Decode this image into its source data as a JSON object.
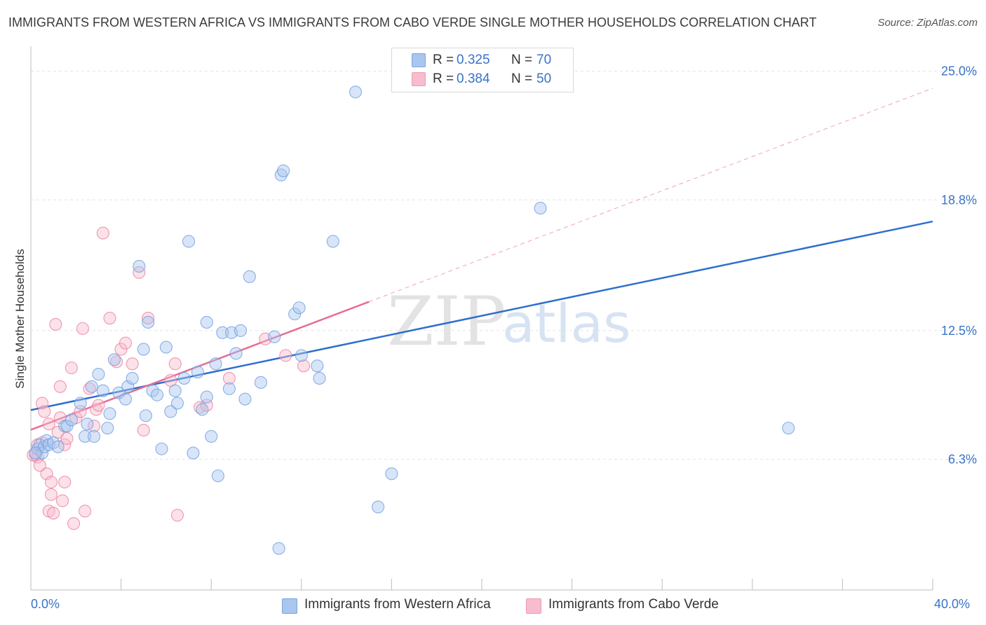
{
  "title": "IMMIGRANTS FROM WESTERN AFRICA VS IMMIGRANTS FROM CABO VERDE SINGLE MOTHER HOUSEHOLDS CORRELATION CHART",
  "source": "Source: ZipAtlas.com",
  "watermark": {
    "zip": "ZIP",
    "atlas": "atlas"
  },
  "legend": {
    "rows": [
      {
        "r_label": "R =",
        "r_value": "0.325",
        "n_label": "N =",
        "n_value": "70",
        "color": "#a9c6ef"
      },
      {
        "r_label": "R =",
        "r_value": "0.384",
        "n_label": "N =",
        "n_value": "50",
        "color": "#f7bccd"
      }
    ]
  },
  "bottom_legend": [
    {
      "label": "Immigrants from Western Africa",
      "color": "#a9c6ef"
    },
    {
      "label": "Immigrants from Cabo Verde",
      "color": "#f7bccd"
    }
  ],
  "chart_data": {
    "type": "scatter",
    "title": "IMMIGRANTS FROM WESTERN AFRICA VS IMMIGRANTS FROM CABO VERDE SINGLE MOTHER HOUSEHOLDS CORRELATION CHART",
    "xlabel": "",
    "ylabel": "Single Mother Households",
    "xlim": [
      0,
      40
    ],
    "ylim": [
      0,
      25.9
    ],
    "x_tick_labels": [
      "0.0%",
      "40.0%"
    ],
    "y_ticks": [
      6.3,
      12.5,
      18.8,
      25.0
    ],
    "y_tick_labels": [
      "6.3%",
      "12.5%",
      "18.8%",
      "25.0%"
    ],
    "grid": true,
    "legend_position": "top-center",
    "series": [
      {
        "name": "Immigrants from Western Africa",
        "color": "#6f9fe0",
        "fill": "#a9c6ef",
        "points": [
          [
            0.3,
            6.8
          ],
          [
            0.4,
            7.0
          ],
          [
            0.5,
            6.6
          ],
          [
            0.6,
            6.9
          ],
          [
            0.7,
            7.2
          ],
          [
            0.8,
            7.0
          ],
          [
            1.0,
            7.1
          ],
          [
            1.2,
            6.9
          ],
          [
            1.5,
            7.9
          ],
          [
            1.6,
            7.9
          ],
          [
            1.8,
            8.2
          ],
          [
            2.2,
            9.0
          ],
          [
            2.4,
            7.4
          ],
          [
            2.5,
            8.0
          ],
          [
            2.7,
            9.8
          ],
          [
            2.8,
            7.4
          ],
          [
            3.0,
            10.4
          ],
          [
            3.2,
            9.6
          ],
          [
            3.4,
            7.8
          ],
          [
            3.5,
            8.5
          ],
          [
            3.7,
            11.1
          ],
          [
            3.9,
            9.5
          ],
          [
            4.2,
            9.2
          ],
          [
            4.3,
            9.8
          ],
          [
            4.5,
            10.2
          ],
          [
            4.8,
            15.6
          ],
          [
            5.0,
            11.6
          ],
          [
            5.1,
            8.4
          ],
          [
            5.2,
            12.9
          ],
          [
            5.4,
            9.6
          ],
          [
            5.6,
            9.4
          ],
          [
            5.8,
            6.8
          ],
          [
            6.0,
            11.7
          ],
          [
            6.2,
            8.6
          ],
          [
            6.4,
            9.6
          ],
          [
            6.5,
            9.0
          ],
          [
            6.8,
            10.2
          ],
          [
            7.0,
            16.8
          ],
          [
            7.2,
            6.6
          ],
          [
            7.4,
            10.5
          ],
          [
            7.6,
            8.7
          ],
          [
            7.8,
            9.3
          ],
          [
            7.8,
            12.9
          ],
          [
            8.0,
            7.4
          ],
          [
            8.2,
            10.9
          ],
          [
            8.3,
            5.5
          ],
          [
            8.5,
            12.4
          ],
          [
            8.8,
            9.7
          ],
          [
            8.9,
            12.4
          ],
          [
            9.1,
            11.4
          ],
          [
            9.3,
            12.5
          ],
          [
            9.5,
            9.2
          ],
          [
            9.7,
            15.1
          ],
          [
            10.2,
            10.0
          ],
          [
            10.8,
            12.2
          ],
          [
            11.0,
            2.0
          ],
          [
            11.1,
            20.0
          ],
          [
            11.2,
            20.2
          ],
          [
            11.7,
            13.3
          ],
          [
            11.9,
            13.6
          ],
          [
            12.0,
            11.3
          ],
          [
            12.7,
            10.8
          ],
          [
            12.8,
            10.2
          ],
          [
            13.4,
            16.8
          ],
          [
            14.4,
            24.0
          ],
          [
            15.4,
            4.0
          ],
          [
            16.0,
            5.6
          ],
          [
            22.6,
            18.4
          ],
          [
            33.6,
            7.8
          ],
          [
            0.2,
            6.6
          ]
        ],
        "trend": {
          "x": [
            0,
            40
          ],
          "y": [
            8.67,
            17.76
          ]
        }
      },
      {
        "name": "Immigrants from Cabo Verde",
        "color": "#ee7fa0",
        "fill": "#f7bccd",
        "points": [
          [
            0.2,
            6.5
          ],
          [
            0.3,
            6.4
          ],
          [
            0.3,
            7.0
          ],
          [
            0.4,
            6.0
          ],
          [
            0.5,
            7.1
          ],
          [
            0.5,
            9.0
          ],
          [
            0.6,
            8.6
          ],
          [
            0.7,
            5.6
          ],
          [
            0.8,
            8.0
          ],
          [
            0.8,
            3.8
          ],
          [
            0.9,
            4.6
          ],
          [
            0.9,
            5.2
          ],
          [
            1.0,
            3.7
          ],
          [
            1.1,
            12.8
          ],
          [
            1.2,
            7.6
          ],
          [
            1.3,
            8.3
          ],
          [
            1.3,
            9.8
          ],
          [
            1.4,
            4.3
          ],
          [
            1.5,
            7.0
          ],
          [
            1.5,
            5.2
          ],
          [
            1.6,
            7.3
          ],
          [
            1.8,
            10.7
          ],
          [
            1.9,
            3.2
          ],
          [
            2.0,
            8.3
          ],
          [
            2.2,
            8.6
          ],
          [
            2.3,
            12.6
          ],
          [
            2.4,
            3.8
          ],
          [
            2.6,
            9.7
          ],
          [
            2.8,
            7.9
          ],
          [
            2.9,
            8.7
          ],
          [
            3.0,
            8.9
          ],
          [
            3.2,
            17.2
          ],
          [
            3.5,
            13.1
          ],
          [
            3.8,
            11.0
          ],
          [
            4.0,
            11.6
          ],
          [
            4.2,
            11.9
          ],
          [
            4.5,
            10.9
          ],
          [
            4.8,
            15.3
          ],
          [
            5.0,
            7.7
          ],
          [
            5.2,
            13.1
          ],
          [
            6.2,
            10.1
          ],
          [
            6.4,
            10.9
          ],
          [
            6.5,
            3.6
          ],
          [
            7.5,
            8.8
          ],
          [
            7.8,
            8.9
          ],
          [
            8.8,
            10.2
          ],
          [
            10.4,
            12.1
          ],
          [
            11.3,
            11.3
          ],
          [
            12.1,
            10.8
          ],
          [
            0.1,
            6.5
          ]
        ],
        "trend": {
          "x": [
            0,
            15
          ],
          "y": [
            7.72,
            13.89
          ]
        },
        "trend_extension": {
          "x": [
            15,
            40
          ],
          "y": [
            13.89,
            24.18
          ]
        }
      }
    ]
  }
}
